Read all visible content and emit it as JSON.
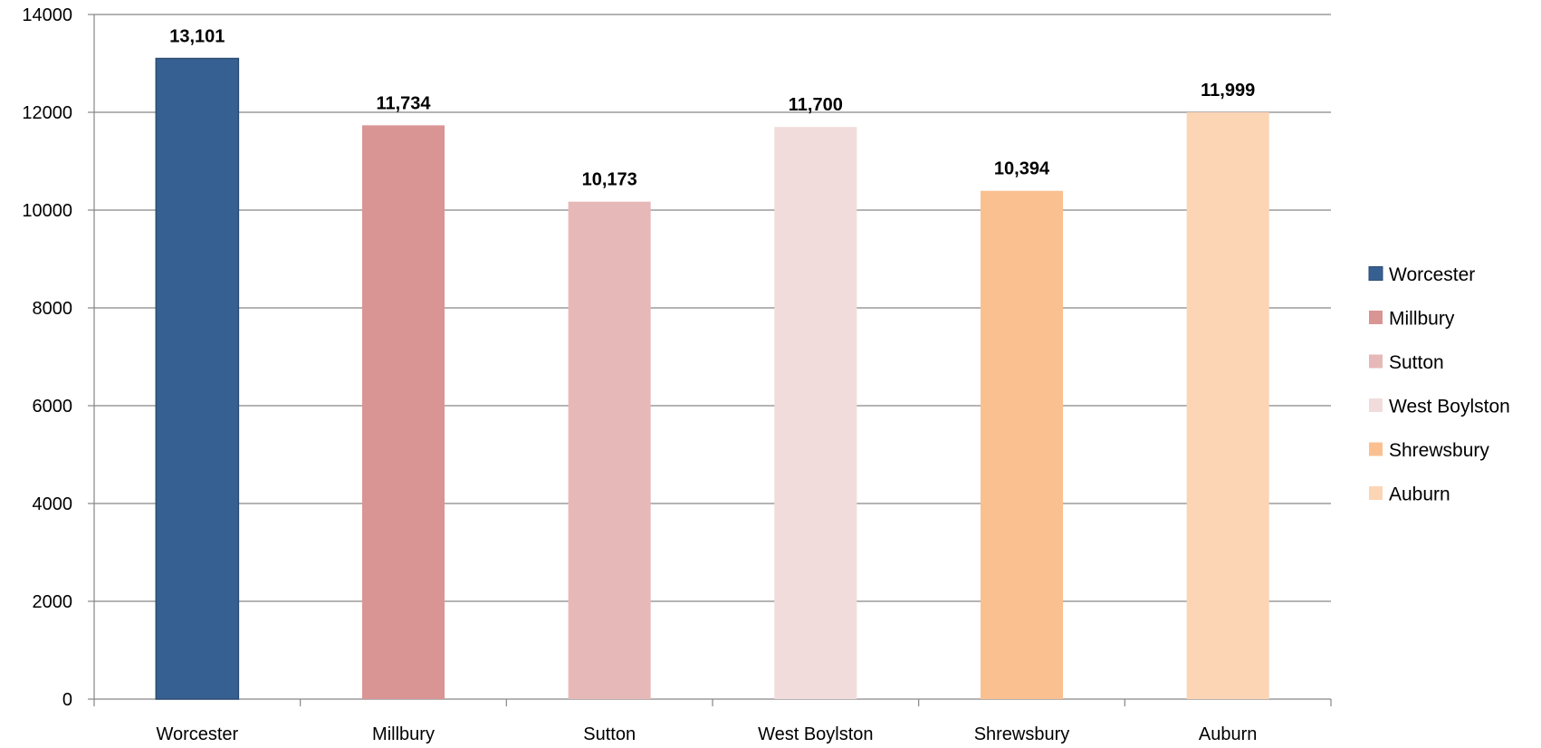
{
  "chart_data": {
    "type": "bar",
    "title": "",
    "xlabel": "",
    "ylabel": "",
    "categories": [
      "Worcester",
      "Millbury",
      "Sutton",
      "West Boylston",
      "Shrewsbury",
      "Auburn"
    ],
    "values": [
      13101,
      11734,
      10173,
      11700,
      10394,
      11999
    ],
    "data_labels": [
      "13,101",
      "11,734",
      "10,173",
      "11,700",
      "10,394",
      "11,999"
    ],
    "colors": [
      "#376092",
      "#D99594",
      "#E6B9B8",
      "#F2DCDB",
      "#FAC090",
      "#FCD5B5"
    ],
    "ylim": [
      0,
      14000
    ],
    "yticks": [
      0,
      2000,
      4000,
      6000,
      8000,
      10000,
      12000,
      14000
    ],
    "ytick_labels": [
      "0",
      "2000",
      "4000",
      "6000",
      "8000",
      "10000",
      "12000",
      "14000"
    ],
    "grid": true,
    "legend": {
      "placement": "right",
      "entries": [
        "Worcester",
        "Millbury",
        "Sutton",
        "West Boylston",
        "Shrewsbury",
        "Auburn"
      ]
    }
  }
}
